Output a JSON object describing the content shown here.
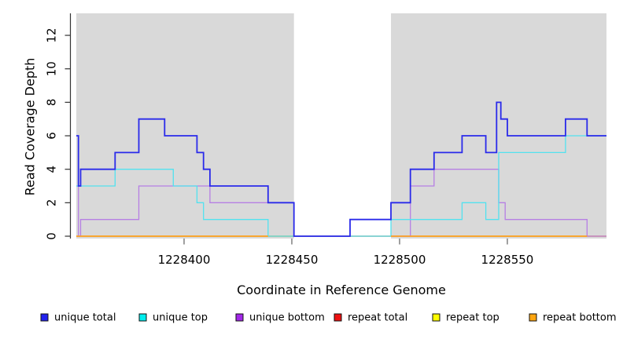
{
  "chart_data": {
    "type": "line",
    "subtype": "step-coverage",
    "title": "",
    "xlabel": "Coordinate in Reference Genome",
    "ylabel": "Read Coverage Depth",
    "xlim": [
      1228350,
      1228596
    ],
    "ylim": [
      0,
      13
    ],
    "x_ticks": [
      "1228400",
      "1228450",
      "1228500",
      "1228550"
    ],
    "x_tick_values": [
      1228400,
      1228450,
      1228500,
      1228550
    ],
    "y_ticks": [
      "0",
      "2",
      "4",
      "6",
      "8",
      "10",
      "12"
    ],
    "y_tick_values": [
      0,
      2,
      4,
      6,
      8,
      10,
      12
    ],
    "grid": false,
    "plot_background": "#d9d9d9",
    "shaded_regions": [
      [
        1228350,
        1228451
      ],
      [
        1228496,
        1228596
      ]
    ],
    "unshaded_gap": [
      1228451,
      1228496
    ],
    "legend_position": "bottom",
    "legend": [
      {
        "label": "unique total",
        "color": "#2222ee"
      },
      {
        "label": "unique top",
        "color": "#00eeee"
      },
      {
        "label": "unique bottom",
        "color": "#a228e8"
      },
      {
        "label": "repeat total",
        "color": "#ee1111"
      },
      {
        "label": "repeat top",
        "color": "#ffff00"
      },
      {
        "label": "repeat bottom",
        "color": "#ffa510"
      }
    ],
    "series": [
      {
        "name": "repeat total",
        "color": "#ee1111",
        "width": 1.2,
        "points": [
          [
            1228350,
            0
          ]
        ],
        "end": 1228596
      },
      {
        "name": "repeat top",
        "color": "#f2f200",
        "width": 1.2,
        "points": [
          [
            1228350,
            0
          ]
        ],
        "end": 1228596
      },
      {
        "name": "unique bottom",
        "color": "#b67fe4",
        "width": 1.3,
        "points": [
          [
            1228350,
            3
          ],
          [
            1228351,
            0
          ],
          [
            1228352,
            1
          ],
          [
            1228379,
            3
          ],
          [
            1228412,
            2
          ],
          [
            1228451,
            0
          ],
          [
            1228505,
            3
          ],
          [
            1228516,
            4
          ],
          [
            1228546,
            2
          ],
          [
            1228549,
            1
          ],
          [
            1228587,
            0
          ]
        ],
        "end": 1228596
      },
      {
        "name": "unique top",
        "color": "#52e2ef",
        "width": 1.3,
        "points": [
          [
            1228350,
            3
          ],
          [
            1228368,
            4
          ],
          [
            1228395,
            3
          ],
          [
            1228406,
            2
          ],
          [
            1228409,
            1
          ],
          [
            1228439,
            0
          ],
          [
            1228496,
            1
          ],
          [
            1228529,
            2
          ],
          [
            1228540,
            1
          ],
          [
            1228546,
            5
          ],
          [
            1228577,
            6
          ]
        ],
        "end": 1228596
      },
      {
        "name": "repeat bottom",
        "color": "#ffa018",
        "width": 1.4,
        "segments": [
          [
            1228350,
            1228439
          ],
          [
            1228496,
            1228587
          ]
        ],
        "value": 0
      },
      {
        "name": "unique total",
        "color": "#2a2aea",
        "width": 1.8,
        "points": [
          [
            1228350,
            6
          ],
          [
            1228351,
            3
          ],
          [
            1228352,
            4
          ],
          [
            1228368,
            5
          ],
          [
            1228379,
            7
          ],
          [
            1228391,
            6
          ],
          [
            1228406,
            5
          ],
          [
            1228409,
            4
          ],
          [
            1228412,
            3
          ],
          [
            1228439,
            2
          ],
          [
            1228451,
            0
          ],
          [
            1228477,
            1
          ],
          [
            1228496,
            2
          ],
          [
            1228505,
            4
          ],
          [
            1228516,
            5
          ],
          [
            1228529,
            6
          ],
          [
            1228540,
            5
          ],
          [
            1228545,
            8
          ],
          [
            1228547,
            7
          ],
          [
            1228550,
            6
          ],
          [
            1228577,
            7
          ],
          [
            1228587,
            6
          ]
        ],
        "end": 1228596
      }
    ]
  }
}
